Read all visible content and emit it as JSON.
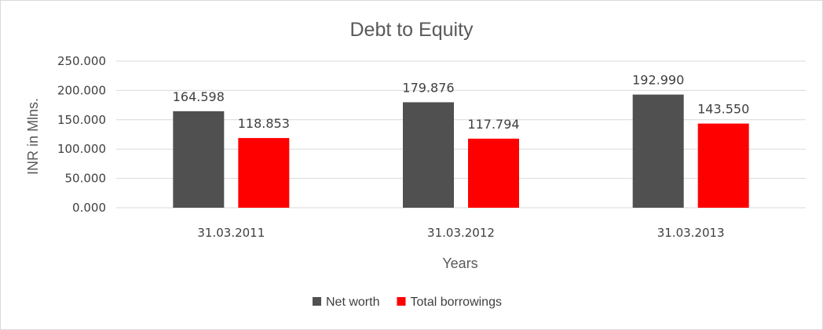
{
  "chart_data": {
    "type": "bar",
    "title": "Debt to Equity",
    "xlabel": "Years",
    "ylabel": "INR in Mlns.",
    "categories": [
      "31.03.2011",
      "31.03.2012",
      "31.03.2013"
    ],
    "series": [
      {
        "name": "Net worth",
        "values": [
          164.598,
          179.876,
          192.99
        ],
        "labels": [
          "164.598",
          "179.876",
          "192.990"
        ],
        "color": "#505050"
      },
      {
        "name": "Total borrowings",
        "values": [
          118.853,
          117.794,
          143.55
        ],
        "labels": [
          "118.853",
          "117.794",
          "143.550"
        ],
        "color": "#ff0000"
      }
    ],
    "ylim": [
      0,
      250
    ],
    "yticks": [
      {
        "value": 0,
        "label": "0.000"
      },
      {
        "value": 50,
        "label": "50.000"
      },
      {
        "value": 100,
        "label": "100.000"
      },
      {
        "value": 150,
        "label": "150.000"
      },
      {
        "value": 200,
        "label": "200.000"
      },
      {
        "value": 250,
        "label": "250.000"
      }
    ],
    "grid": true,
    "gridcolor": "#d9d9d9",
    "legend_position": "bottom"
  }
}
